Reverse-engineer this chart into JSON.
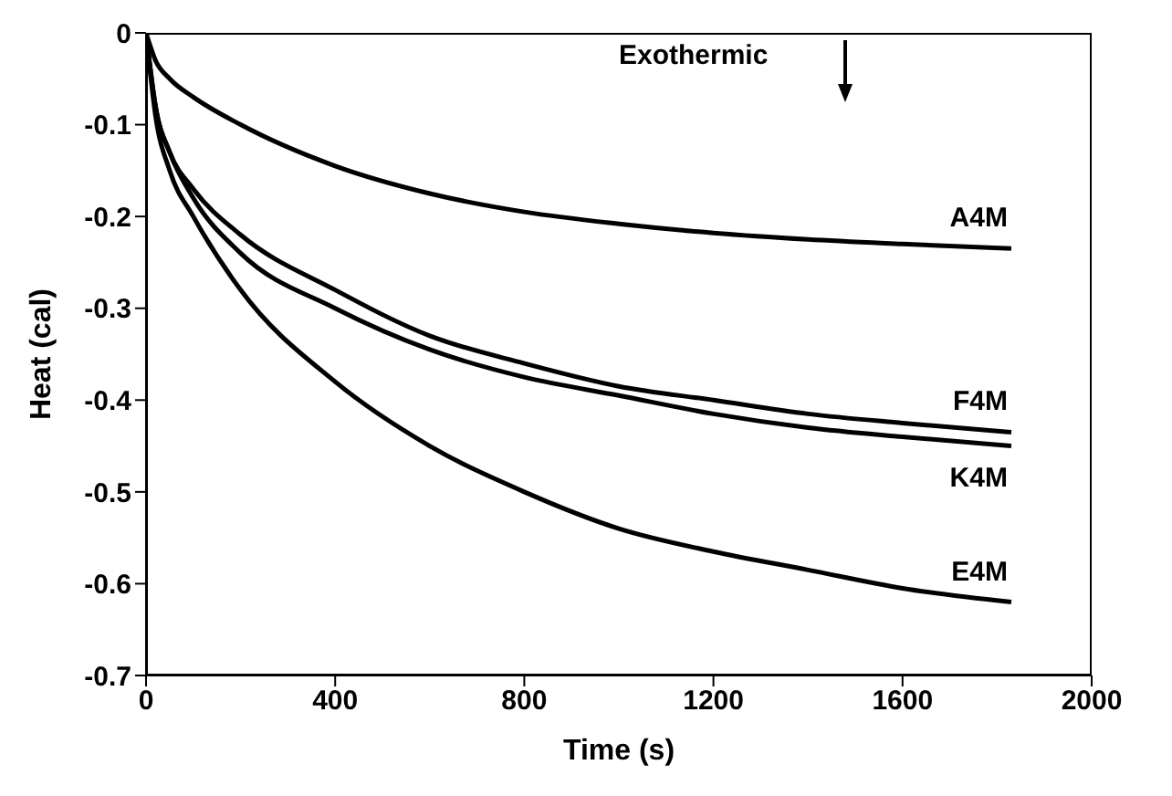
{
  "chart_data": {
    "type": "line",
    "xlabel": "Time (s)",
    "ylabel": "Heat (cal)",
    "annotations": [
      "Exothermic"
    ],
    "x": [
      0,
      20,
      50,
      100,
      200,
      400,
      600,
      800,
      1000,
      1200,
      1400,
      1600,
      1830
    ],
    "series": [
      {
        "name": "A4M",
        "color": "#000000",
        "values": [
          0,
          -0.03,
          -0.05,
          -0.07,
          -0.1,
          -0.145,
          -0.175,
          -0.195,
          -0.208,
          -0.218,
          -0.225,
          -0.23,
          -0.235
        ]
      },
      {
        "name": "F4M",
        "color": "#000000",
        "values": [
          0,
          -0.08,
          -0.13,
          -0.17,
          -0.22,
          -0.28,
          -0.33,
          -0.36,
          -0.385,
          -0.4,
          -0.415,
          -0.425,
          -0.435
        ]
      },
      {
        "name": "K4M",
        "color": "#000000",
        "values": [
          0,
          -0.08,
          -0.13,
          -0.18,
          -0.24,
          -0.3,
          -0.345,
          -0.375,
          -0.395,
          -0.415,
          -0.43,
          -0.44,
          -0.45
        ]
      },
      {
        "name": "E4M",
        "color": "#000000",
        "values": [
          0,
          -0.09,
          -0.15,
          -0.2,
          -0.28,
          -0.38,
          -0.45,
          -0.5,
          -0.54,
          -0.565,
          -0.585,
          -0.605,
          -0.62
        ]
      }
    ],
    "xlim": [
      0,
      2000
    ],
    "xticks": [
      0,
      400,
      800,
      1200,
      1600,
      2000
    ],
    "ylim": [
      -0.7,
      0
    ],
    "yticks": [
      0,
      -0.1,
      -0.2,
      -0.3,
      -0.4,
      -0.5,
      -0.6,
      -0.7
    ],
    "grid": false,
    "legend": false,
    "marker": "none",
    "line_style": "solid"
  }
}
